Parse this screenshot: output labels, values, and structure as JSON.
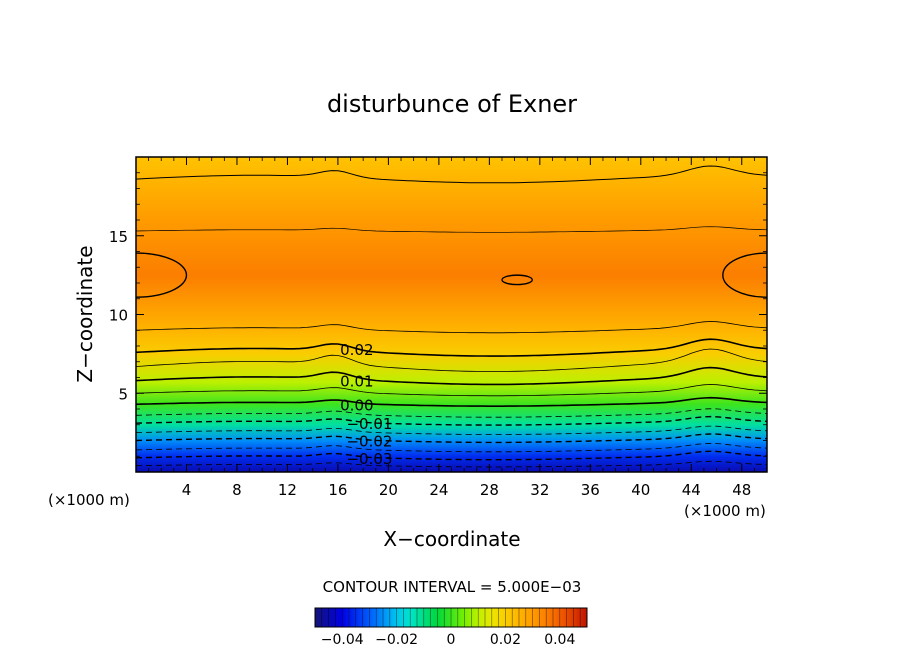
{
  "chart_data": {
    "type": "contour",
    "title": "disturbunce of Exner",
    "xlabel": "X−coordinate",
    "ylabel": "Z−coordinate",
    "x_unit_left": "(×1000 m)",
    "x_unit_right": "(×1000 m)",
    "xlim": [
      0,
      50
    ],
    "ylim": [
      0,
      20
    ],
    "x_ticks": [
      4,
      8,
      12,
      16,
      20,
      24,
      28,
      32,
      36,
      40,
      44,
      48
    ],
    "y_ticks": [
      5,
      10,
      15
    ],
    "contour_interval_text": "CONTOUR INTERVAL = 5.000E−03",
    "contour_labels": [
      {
        "text": "0.02",
        "x": 17.5,
        "z": 7.8
      },
      {
        "text": "0.01",
        "x": 17.5,
        "z": 5.8
      },
      {
        "text": "0.00",
        "x": 17.5,
        "z": 4.3
      },
      {
        "text": "−0.01",
        "x": 18.5,
        "z": 3.1
      },
      {
        "text": "−0.02",
        "x": 18.5,
        "z": 2.0
      },
      {
        "text": "−0.03",
        "x": 18.5,
        "z": 0.9
      }
    ],
    "field_profile": [
      {
        "z": 0.0,
        "value": -0.045
      },
      {
        "z": 1.0,
        "value": -0.035
      },
      {
        "z": 2.0,
        "value": -0.025
      },
      {
        "z": 3.0,
        "value": -0.012
      },
      {
        "z": 4.3,
        "value": 0.0
      },
      {
        "z": 5.7,
        "value": 0.01
      },
      {
        "z": 7.5,
        "value": 0.02
      },
      {
        "z": 9.0,
        "value": 0.025
      },
      {
        "z": 12.5,
        "value": 0.035
      },
      {
        "z": 16.0,
        "value": 0.03
      },
      {
        "z": 18.5,
        "value": 0.025
      },
      {
        "z": 20.0,
        "value": 0.022
      }
    ],
    "colorbar": {
      "min": -0.05,
      "max": 0.05,
      "tick_labels": [
        "−0.04",
        "−0.02",
        "0",
        "0.02",
        "0.04"
      ],
      "tick_values": [
        -0.04,
        -0.02,
        0,
        0.02,
        0.04
      ]
    }
  }
}
